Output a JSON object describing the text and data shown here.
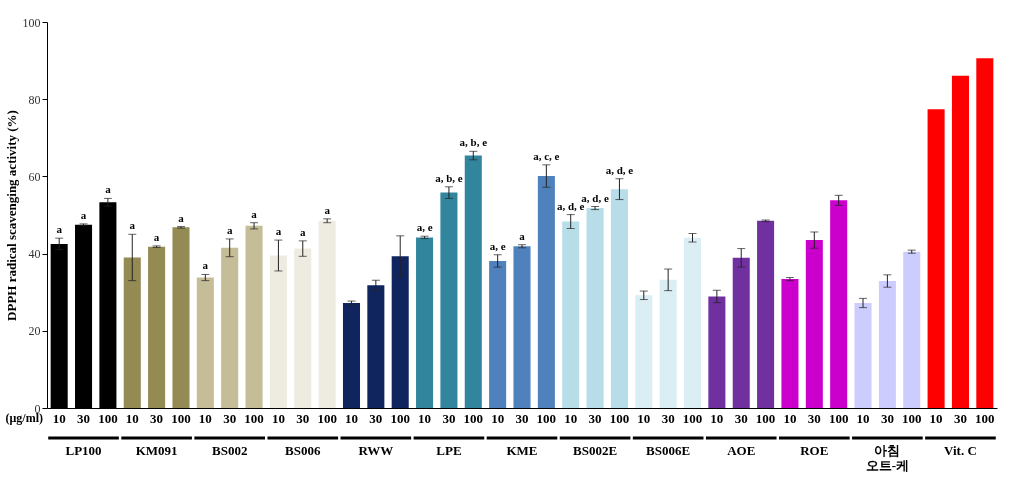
{
  "chart_data": {
    "type": "bar",
    "ylabel": "DPPH radical scavenging activity (%)",
    "xlabel": "(μg/ml)",
    "categories": [
      "10",
      "30",
      "100",
      "10",
      "30",
      "100",
      "10",
      "30",
      "100",
      "10",
      "30",
      "100",
      "10",
      "30",
      "100",
      "10",
      "30",
      "100",
      "10",
      "30",
      "100",
      "10",
      "30",
      "100",
      "10",
      "30",
      "100",
      "10",
      "30",
      "100",
      "10",
      "30",
      "100",
      "10",
      "30",
      "100",
      "10",
      "30",
      "100"
    ],
    "ylim": [
      0,
      100
    ],
    "yticks": [
      0,
      20,
      40,
      60,
      80,
      100
    ],
    "grid": false,
    "series": [
      {
        "name": "LP100",
        "color": "#000000",
        "values": [
          42.5,
          47.5,
          53.3,
          null,
          null,
          null,
          null,
          null,
          null,
          null,
          null,
          null,
          null,
          null,
          null,
          null,
          null,
          null,
          null,
          null,
          null,
          null,
          null,
          null,
          null,
          null,
          null,
          null,
          null,
          null,
          null,
          null,
          null,
          null,
          null,
          null,
          null,
          null,
          null
        ],
        "errors": [
          1.5,
          0.2,
          1,
          null,
          null,
          null,
          null,
          null,
          null,
          null,
          null,
          null,
          null,
          null,
          null,
          null,
          null,
          null,
          null,
          null,
          null,
          null,
          null,
          null,
          null,
          null,
          null,
          null,
          null,
          null,
          null,
          null,
          null,
          null,
          null,
          null,
          null,
          null,
          null
        ],
        "value_labels": [
          "a",
          "a",
          "a",
          null,
          null,
          null,
          null,
          null,
          null,
          null,
          null,
          null,
          null,
          null,
          null,
          null,
          null,
          null,
          null,
          null,
          null,
          null,
          null,
          null,
          null,
          null,
          null,
          null,
          null,
          null,
          null,
          null,
          null,
          null,
          null,
          null,
          null,
          null,
          null
        ]
      },
      {
        "name": "KM091",
        "color": "#948a54",
        "values": [
          null,
          null,
          null,
          39,
          41.8,
          46.8,
          null,
          null,
          null,
          null,
          null,
          null,
          null,
          null,
          null,
          null,
          null,
          null,
          null,
          null,
          null,
          null,
          null,
          null,
          null,
          null,
          null,
          null,
          null,
          null,
          null,
          null,
          null,
          null,
          null,
          null,
          null,
          null,
          null
        ],
        "errors": [
          null,
          null,
          null,
          6,
          0.2,
          0.2,
          null,
          null,
          null,
          null,
          null,
          null,
          null,
          null,
          null,
          null,
          null,
          null,
          null,
          null,
          null,
          null,
          null,
          null,
          null,
          null,
          null,
          null,
          null,
          null,
          null,
          null,
          null,
          null,
          null,
          null,
          null,
          null,
          null
        ],
        "value_labels": [
          null,
          null,
          null,
          "a",
          "a",
          "a",
          null,
          null,
          null,
          null,
          null,
          null,
          null,
          null,
          null,
          null,
          null,
          null,
          null,
          null,
          null,
          null,
          null,
          null,
          null,
          null,
          null,
          null,
          null,
          null,
          null,
          null,
          null,
          null,
          null,
          null,
          null,
          null,
          null
        ]
      },
      {
        "name": "BS002",
        "color": "#c4bd97",
        "values": [
          null,
          null,
          null,
          null,
          null,
          null,
          33.8,
          41.5,
          47.2,
          null,
          null,
          null,
          null,
          null,
          null,
          null,
          null,
          null,
          null,
          null,
          null,
          null,
          null,
          null,
          null,
          null,
          null,
          null,
          null,
          null,
          null,
          null,
          null,
          null,
          null,
          null,
          null,
          null,
          null
        ],
        "errors": [
          null,
          null,
          null,
          null,
          null,
          null,
          0.8,
          2.3,
          0.8,
          null,
          null,
          null,
          null,
          null,
          null,
          null,
          null,
          null,
          null,
          null,
          null,
          null,
          null,
          null,
          null,
          null,
          null,
          null,
          null,
          null,
          null,
          null,
          null,
          null,
          null,
          null,
          null,
          null,
          null
        ],
        "value_labels": [
          null,
          null,
          null,
          null,
          null,
          null,
          "a",
          "a",
          "a",
          null,
          null,
          null,
          null,
          null,
          null,
          null,
          null,
          null,
          null,
          null,
          null,
          null,
          null,
          null,
          null,
          null,
          null,
          null,
          null,
          null,
          null,
          null,
          null,
          null,
          null,
          null,
          null,
          null,
          null
        ]
      },
      {
        "name": "BS006",
        "color": "#eeece1",
        "values": [
          null,
          null,
          null,
          null,
          null,
          null,
          null,
          null,
          null,
          39.5,
          41.3,
          48.5,
          null,
          null,
          null,
          null,
          null,
          null,
          null,
          null,
          null,
          null,
          null,
          null,
          null,
          null,
          null,
          null,
          null,
          null,
          null,
          null,
          null,
          null,
          null,
          null,
          null,
          null,
          null
        ],
        "errors": [
          null,
          null,
          null,
          null,
          null,
          null,
          null,
          null,
          null,
          4,
          2,
          0.5,
          null,
          null,
          null,
          null,
          null,
          null,
          null,
          null,
          null,
          null,
          null,
          null,
          null,
          null,
          null,
          null,
          null,
          null,
          null,
          null,
          null,
          null,
          null,
          null,
          null,
          null,
          null
        ],
        "value_labels": [
          null,
          null,
          null,
          null,
          null,
          null,
          null,
          null,
          null,
          "a",
          "a",
          "a",
          null,
          null,
          null,
          null,
          null,
          null,
          null,
          null,
          null,
          null,
          null,
          null,
          null,
          null,
          null,
          null,
          null,
          null,
          null,
          null,
          null,
          null,
          null,
          null,
          null,
          null,
          null
        ]
      },
      {
        "name": "RWW",
        "color": "#10255e",
        "values": [
          null,
          null,
          null,
          null,
          null,
          null,
          null,
          null,
          null,
          null,
          null,
          null,
          27.2,
          31.8,
          39.3,
          null,
          null,
          null,
          null,
          null,
          null,
          null,
          null,
          null,
          null,
          null,
          null,
          null,
          null,
          null,
          null,
          null,
          null,
          null,
          null,
          null,
          null,
          null,
          null
        ],
        "errors": [
          null,
          null,
          null,
          null,
          null,
          null,
          null,
          null,
          null,
          null,
          null,
          null,
          0.5,
          1.3,
          5.3,
          null,
          null,
          null,
          null,
          null,
          null,
          null,
          null,
          null,
          null,
          null,
          null,
          null,
          null,
          null,
          null,
          null,
          null,
          null,
          null,
          null,
          null,
          null,
          null
        ]
      },
      {
        "name": "LPE",
        "color": "#31859c",
        "values": [
          null,
          null,
          null,
          null,
          null,
          null,
          null,
          null,
          null,
          null,
          null,
          null,
          null,
          null,
          null,
          44.2,
          55.8,
          65.4,
          null,
          null,
          null,
          null,
          null,
          null,
          null,
          null,
          null,
          null,
          null,
          null,
          null,
          null,
          null,
          null,
          null,
          null,
          null,
          null,
          null
        ],
        "errors": [
          null,
          null,
          null,
          null,
          null,
          null,
          null,
          null,
          null,
          null,
          null,
          null,
          null,
          null,
          null,
          0.3,
          1.5,
          1.1,
          null,
          null,
          null,
          null,
          null,
          null,
          null,
          null,
          null,
          null,
          null,
          null,
          null,
          null,
          null,
          null,
          null,
          null,
          null,
          null,
          null
        ],
        "value_labels": [
          null,
          null,
          null,
          null,
          null,
          null,
          null,
          null,
          null,
          null,
          null,
          null,
          null,
          null,
          null,
          "a, e",
          "a, b, e",
          "a, b, e",
          null,
          null,
          null,
          null,
          null,
          null,
          null,
          null,
          null,
          null,
          null,
          null,
          null,
          null,
          null,
          null,
          null,
          null,
          null,
          null,
          null
        ]
      },
      {
        "name": "KME",
        "color": "#4f81bd",
        "values": [
          null,
          null,
          null,
          null,
          null,
          null,
          null,
          null,
          null,
          null,
          null,
          null,
          null,
          null,
          null,
          null,
          null,
          null,
          38.1,
          41.9,
          60.1,
          null,
          null,
          null,
          null,
          null,
          null,
          null,
          null,
          null,
          null,
          null,
          null,
          null,
          null,
          null,
          null,
          null,
          null
        ],
        "errors": [
          null,
          null,
          null,
          null,
          null,
          null,
          null,
          null,
          null,
          null,
          null,
          null,
          null,
          null,
          null,
          null,
          null,
          null,
          1.6,
          0.4,
          2.9,
          null,
          null,
          null,
          null,
          null,
          null,
          null,
          null,
          null,
          null,
          null,
          null,
          null,
          null,
          null,
          null,
          null,
          null
        ],
        "value_labels": [
          null,
          null,
          null,
          null,
          null,
          null,
          null,
          null,
          null,
          null,
          null,
          null,
          null,
          null,
          null,
          null,
          null,
          null,
          "a, e",
          "a",
          "a, c, e",
          null,
          null,
          null,
          null,
          null,
          null,
          null,
          null,
          null,
          null,
          null,
          null,
          null,
          null,
          null,
          null,
          null,
          null
        ]
      },
      {
        "name": "BS002E",
        "color": "#b7dde8",
        "values": [
          null,
          null,
          null,
          null,
          null,
          null,
          null,
          null,
          null,
          null,
          null,
          null,
          null,
          null,
          null,
          null,
          null,
          null,
          null,
          null,
          null,
          48.3,
          51.8,
          56.7,
          null,
          null,
          null,
          null,
          null,
          null,
          null,
          null,
          null,
          null,
          null,
          null,
          null,
          null,
          null
        ],
        "errors": [
          null,
          null,
          null,
          null,
          null,
          null,
          null,
          null,
          null,
          null,
          null,
          null,
          null,
          null,
          null,
          null,
          null,
          null,
          null,
          null,
          null,
          1.8,
          0.4,
          2.7,
          null,
          null,
          null,
          null,
          null,
          null,
          null,
          null,
          null,
          null,
          null,
          null,
          null,
          null,
          null
        ],
        "value_labels": [
          null,
          null,
          null,
          null,
          null,
          null,
          null,
          null,
          null,
          null,
          null,
          null,
          null,
          null,
          null,
          null,
          null,
          null,
          null,
          null,
          null,
          "a, d, e",
          "a, d, e",
          "a, d, e",
          null,
          null,
          null,
          null,
          null,
          null,
          null,
          null,
          null,
          null,
          null,
          null,
          null,
          null,
          null
        ]
      },
      {
        "name": "BS006E",
        "color": "#dbeef4",
        "values": [
          null,
          null,
          null,
          null,
          null,
          null,
          null,
          null,
          null,
          null,
          null,
          null,
          null,
          null,
          null,
          null,
          null,
          null,
          null,
          null,
          null,
          null,
          null,
          null,
          29.2,
          33.2,
          44.1,
          null,
          null,
          null,
          null,
          null,
          null,
          null,
          null,
          null,
          null,
          null,
          null
        ],
        "errors": [
          null,
          null,
          null,
          null,
          null,
          null,
          null,
          null,
          null,
          null,
          null,
          null,
          null,
          null,
          null,
          null,
          null,
          null,
          null,
          null,
          null,
          null,
          null,
          null,
          1.1,
          2.8,
          1.1,
          null,
          null,
          null,
          null,
          null,
          null,
          null,
          null,
          null,
          null,
          null,
          null
        ]
      },
      {
        "name": "AOE",
        "color": "#7030a0",
        "values": [
          null,
          null,
          null,
          null,
          null,
          null,
          null,
          null,
          null,
          null,
          null,
          null,
          null,
          null,
          null,
          null,
          null,
          null,
          null,
          null,
          null,
          null,
          null,
          null,
          null,
          null,
          null,
          28.9,
          38.9,
          48.5,
          null,
          null,
          null,
          null,
          null,
          null,
          null,
          null,
          null
        ],
        "errors": [
          null,
          null,
          null,
          null,
          null,
          null,
          null,
          null,
          null,
          null,
          null,
          null,
          null,
          null,
          null,
          null,
          null,
          null,
          null,
          null,
          null,
          null,
          null,
          null,
          null,
          null,
          null,
          1.6,
          2.4,
          0.2,
          null,
          null,
          null,
          null,
          null,
          null,
          null,
          null,
          null
        ]
      },
      {
        "name": "ROE",
        "color": "#cc00cc",
        "values": [
          null,
          null,
          null,
          null,
          null,
          null,
          null,
          null,
          null,
          null,
          null,
          null,
          null,
          null,
          null,
          null,
          null,
          null,
          null,
          null,
          null,
          null,
          null,
          null,
          null,
          null,
          null,
          null,
          null,
          null,
          33.4,
          43.5,
          53.8,
          null,
          null,
          null,
          null,
          null,
          null
        ],
        "errors": [
          null,
          null,
          null,
          null,
          null,
          null,
          null,
          null,
          null,
          null,
          null,
          null,
          null,
          null,
          null,
          null,
          null,
          null,
          null,
          null,
          null,
          null,
          null,
          null,
          null,
          null,
          null,
          null,
          null,
          null,
          0.4,
          2.1,
          1.3,
          null,
          null,
          null,
          null,
          null,
          null
        ]
      },
      {
        "name": "아침\n오트-케",
        "color": "#ccccff",
        "values": [
          null,
          null,
          null,
          null,
          null,
          null,
          null,
          null,
          null,
          null,
          null,
          null,
          null,
          null,
          null,
          null,
          null,
          null,
          null,
          null,
          null,
          null,
          null,
          null,
          null,
          null,
          null,
          null,
          null,
          null,
          null,
          null,
          null,
          27.2,
          32.9,
          40.5,
          null,
          null,
          null
        ],
        "errors": [
          null,
          null,
          null,
          null,
          null,
          null,
          null,
          null,
          null,
          null,
          null,
          null,
          null,
          null,
          null,
          null,
          null,
          null,
          null,
          null,
          null,
          null,
          null,
          null,
          null,
          null,
          null,
          null,
          null,
          null,
          null,
          null,
          null,
          1.2,
          1.6,
          0.4,
          null,
          null,
          null
        ]
      },
      {
        "name": "Vit. C",
        "color": "#ff0000",
        "values": [
          null,
          null,
          null,
          null,
          null,
          null,
          null,
          null,
          null,
          null,
          null,
          null,
          null,
          null,
          null,
          null,
          null,
          null,
          null,
          null,
          null,
          null,
          null,
          null,
          null,
          null,
          null,
          null,
          null,
          null,
          null,
          null,
          null,
          null,
          null,
          null,
          77.4,
          86.1,
          90.6
        ]
      }
    ]
  }
}
